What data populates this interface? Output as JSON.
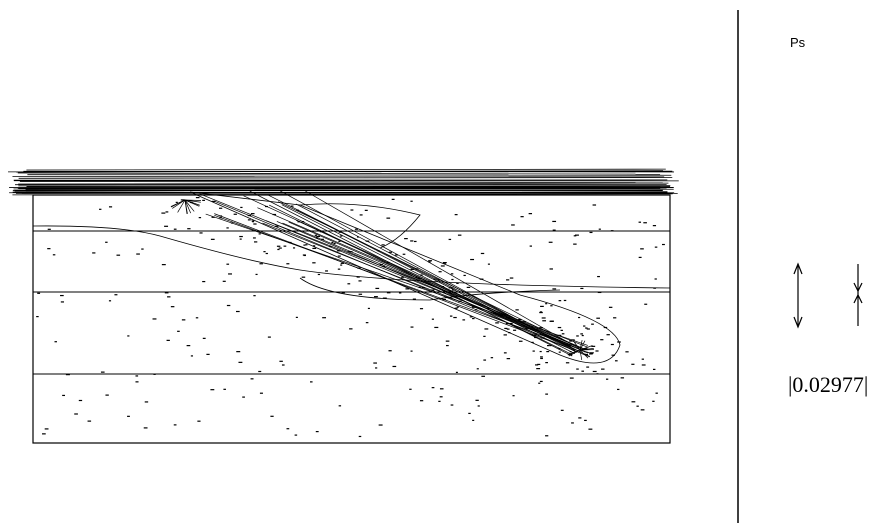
{
  "label": "Ps",
  "scale_value": "|0.02977|"
}
